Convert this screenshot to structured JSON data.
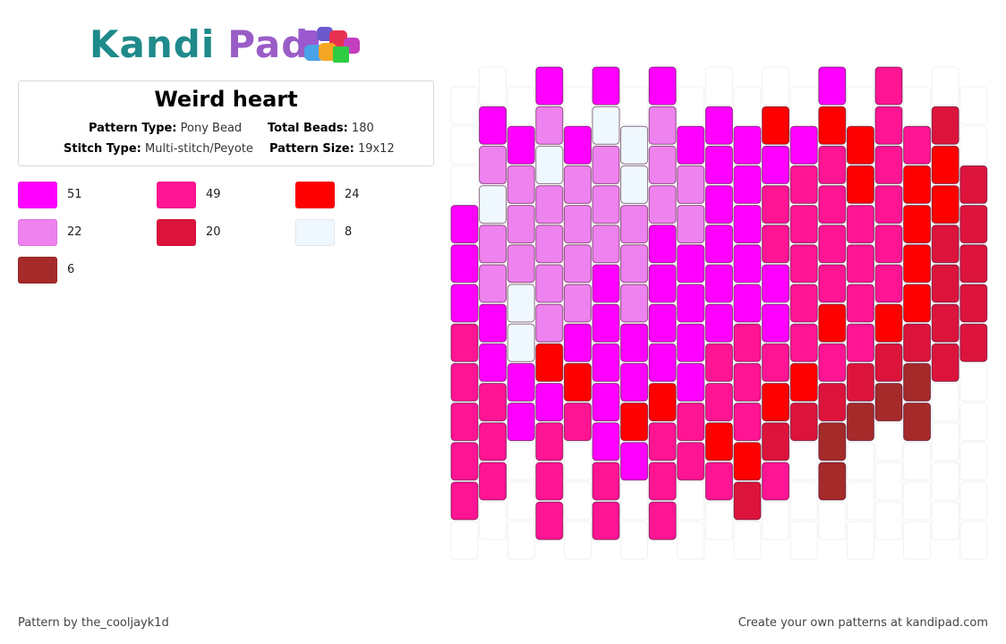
{
  "brand": {
    "part1": "Kandi",
    "part2": "Pad"
  },
  "pattern": {
    "name": "Weird heart",
    "type_label": "Pattern Type:",
    "type_value": "Pony Bead",
    "beads_label": "Total Beads:",
    "beads_value": "180",
    "stitch_label": "Stitch Type:",
    "stitch_value": "Multi-stitch/Peyote",
    "size_label": "Pattern Size:",
    "size_value": "19x12"
  },
  "palette": [
    {
      "color": "#ff00ff",
      "count": "51"
    },
    {
      "color": "#ff1493",
      "count": "49"
    },
    {
      "color": "#ff0000",
      "count": "24"
    },
    {
      "color": "#ee82ee",
      "count": "22"
    },
    {
      "color": "#dc143c",
      "count": "20"
    },
    {
      "color": "#f0f8ff",
      "count": "8"
    },
    {
      "color": "#a52a2a",
      "count": "6"
    }
  ],
  "bead_columns": [
    [
      null,
      null,
      null,
      "a",
      "a",
      "a",
      "b",
      "b",
      "b",
      "b",
      "b",
      null
    ],
    [
      null,
      "a",
      "d",
      "f",
      "d",
      "d",
      "a",
      "a",
      "b",
      "b",
      "b",
      null
    ],
    [
      null,
      "a",
      "d",
      "d",
      "d",
      "f",
      "f",
      "a",
      "a",
      null,
      null,
      null
    ],
    [
      "a",
      "d",
      "f",
      "d",
      "d",
      "d",
      "d",
      "c",
      "a",
      "b",
      "b",
      "b"
    ],
    [
      null,
      "a",
      "d",
      "d",
      "d",
      "d",
      "a",
      "c",
      "b",
      null,
      null,
      null
    ],
    [
      "a",
      "f",
      "d",
      "d",
      "d",
      "a",
      "a",
      "a",
      "a",
      "a",
      "b",
      "b"
    ],
    [
      null,
      "f",
      "f",
      "d",
      "d",
      "d",
      "a",
      "a",
      "c",
      "a",
      null,
      null
    ],
    [
      "a",
      "d",
      "d",
      "d",
      "a",
      "a",
      "a",
      "a",
      "c",
      "b",
      "b",
      "b"
    ],
    [
      null,
      "a",
      "d",
      "d",
      "a",
      "a",
      "a",
      "a",
      "b",
      "b",
      null,
      null
    ],
    [
      null,
      "a",
      "a",
      "a",
      "a",
      "a",
      "a",
      "b",
      "b",
      "c",
      "b",
      null
    ],
    [
      null,
      "a",
      "a",
      "a",
      "a",
      "a",
      "b",
      "b",
      "b",
      "c",
      "e",
      null
    ],
    [
      null,
      "c",
      "a",
      "b",
      "b",
      "a",
      "a",
      "b",
      "c",
      "e",
      "b",
      null
    ],
    [
      null,
      "a",
      "b",
      "b",
      "b",
      "b",
      "b",
      "c",
      "e",
      null,
      null,
      null
    ],
    [
      "a",
      "c",
      "b",
      "b",
      "b",
      "b",
      "c",
      "b",
      "e",
      "g",
      "g",
      null
    ],
    [
      null,
      "c",
      "c",
      "b",
      "b",
      "b",
      "b",
      "e",
      "g",
      null,
      null,
      null
    ],
    [
      "b",
      "b",
      "b",
      "b",
      "b",
      "b",
      "c",
      "e",
      "g",
      null,
      null,
      null
    ],
    [
      null,
      "b",
      "c",
      "c",
      "c",
      "c",
      "e",
      "g",
      "g",
      null,
      null,
      null
    ],
    [
      null,
      "e",
      "c",
      "c",
      "e",
      "e",
      "e",
      "e",
      null,
      null,
      null,
      null
    ],
    [
      null,
      null,
      "e",
      "e",
      "e",
      "e",
      "e",
      null,
      null,
      null,
      null,
      null
    ]
  ],
  "footer": {
    "author": "Pattern by the_cooljayk1d",
    "promo": "Create your own patterns at kandipad.com"
  }
}
